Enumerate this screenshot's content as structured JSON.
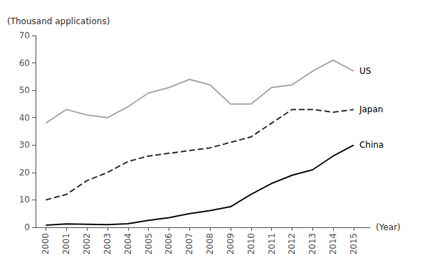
{
  "chart_data": {
    "type": "line",
    "xlabel": "(Year)",
    "ylabel": "(Thousand applications)",
    "x": [
      2000,
      2001,
      2002,
      2003,
      2004,
      2005,
      2006,
      2007,
      2008,
      2009,
      2010,
      2011,
      2012,
      2013,
      2014,
      2015
    ],
    "series": [
      {
        "name": "US",
        "color": "#aaaaaa",
        "line_style": "solid",
        "values": [
          38,
          43,
          41,
          40,
          44,
          49,
          51,
          54,
          52,
          45,
          45,
          51,
          52,
          57,
          61,
          57
        ]
      },
      {
        "name": "Japan",
        "color": "#333333",
        "line_style": "dashed",
        "values": [
          10,
          12,
          17,
          20,
          24,
          26,
          27,
          28,
          29,
          31,
          33,
          38,
          43,
          43,
          42,
          43
        ]
      },
      {
        "name": "China",
        "color": "#111111",
        "line_style": "solid",
        "values": [
          0.8,
          1.2,
          1.1,
          1.0,
          1.3,
          2.5,
          3.5,
          5.0,
          6.1,
          7.5,
          12,
          16,
          19,
          21,
          26,
          30
        ]
      }
    ],
    "xlim": [
      1999.5,
      2015.8
    ],
    "xticks": [
      2000,
      2001,
      2002,
      2003,
      2004,
      2005,
      2006,
      2007,
      2008,
      2009,
      2010,
      2011,
      2012,
      2013,
      2014,
      2015
    ],
    "ylim": [
      0,
      70
    ],
    "yticks": [
      0,
      10,
      20,
      30,
      40,
      50,
      60,
      70
    ],
    "grid": false
  }
}
